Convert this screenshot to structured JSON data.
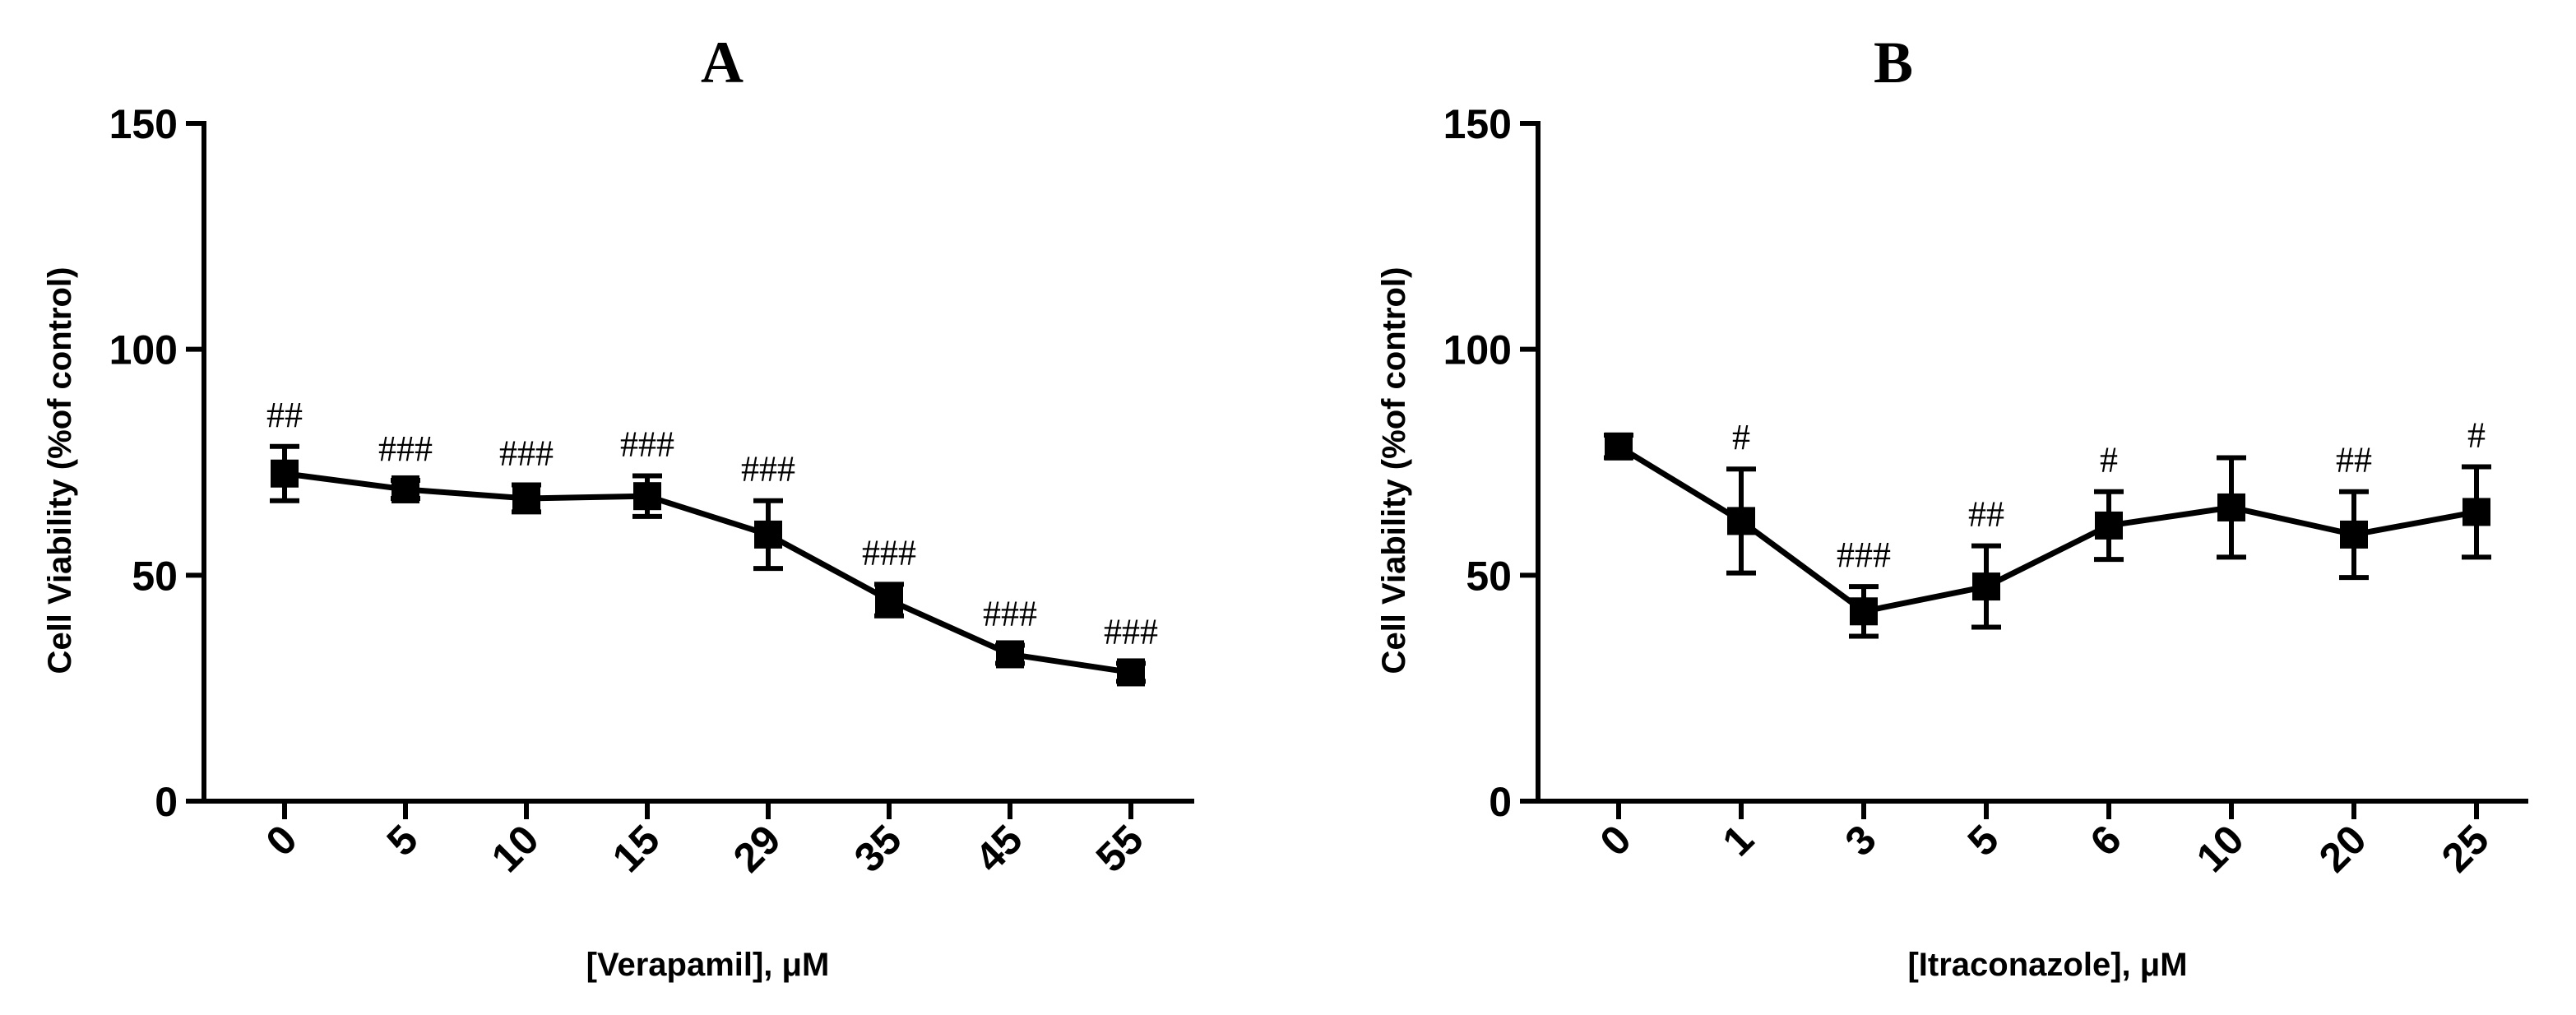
{
  "chart_data": [
    {
      "type": "line",
      "panel": "A",
      "title": "A",
      "ylabel": "Cell Viability (%of control)",
      "xlabel": "[Verapamil], μM",
      "ylim": [
        0,
        150
      ],
      "yticks": [
        "0",
        "50",
        "100",
        "150"
      ],
      "categories": [
        "0",
        "5",
        "10",
        "15",
        "29",
        "35",
        "45",
        "55"
      ],
      "values": [
        72.5,
        69,
        67,
        67.5,
        59,
        44.5,
        32.5,
        28.5
      ],
      "errors": [
        6,
        2,
        3,
        4.5,
        7.5,
        3.5,
        2,
        2
      ],
      "annotations": [
        "##",
        "###",
        "###",
        "###",
        "###",
        "###",
        "###",
        "###"
      ]
    },
    {
      "type": "line",
      "panel": "B",
      "title": "B",
      "ylabel": "Cell Viability (%of control)",
      "xlabel": "[Itraconazole], μM",
      "ylim": [
        0,
        150
      ],
      "yticks": [
        "0",
        "50",
        "100",
        "150"
      ],
      "categories": [
        "0",
        "1",
        "3",
        "5",
        "6",
        "10",
        "20",
        "25"
      ],
      "values": [
        78.5,
        62,
        42,
        47.5,
        61,
        65,
        59,
        64
      ],
      "errors": [
        2.5,
        11.5,
        5.5,
        9,
        7.5,
        11,
        9.5,
        10
      ],
      "annotations": [
        "",
        "#",
        "###",
        "##",
        "#",
        "",
        "##",
        "#"
      ]
    }
  ]
}
